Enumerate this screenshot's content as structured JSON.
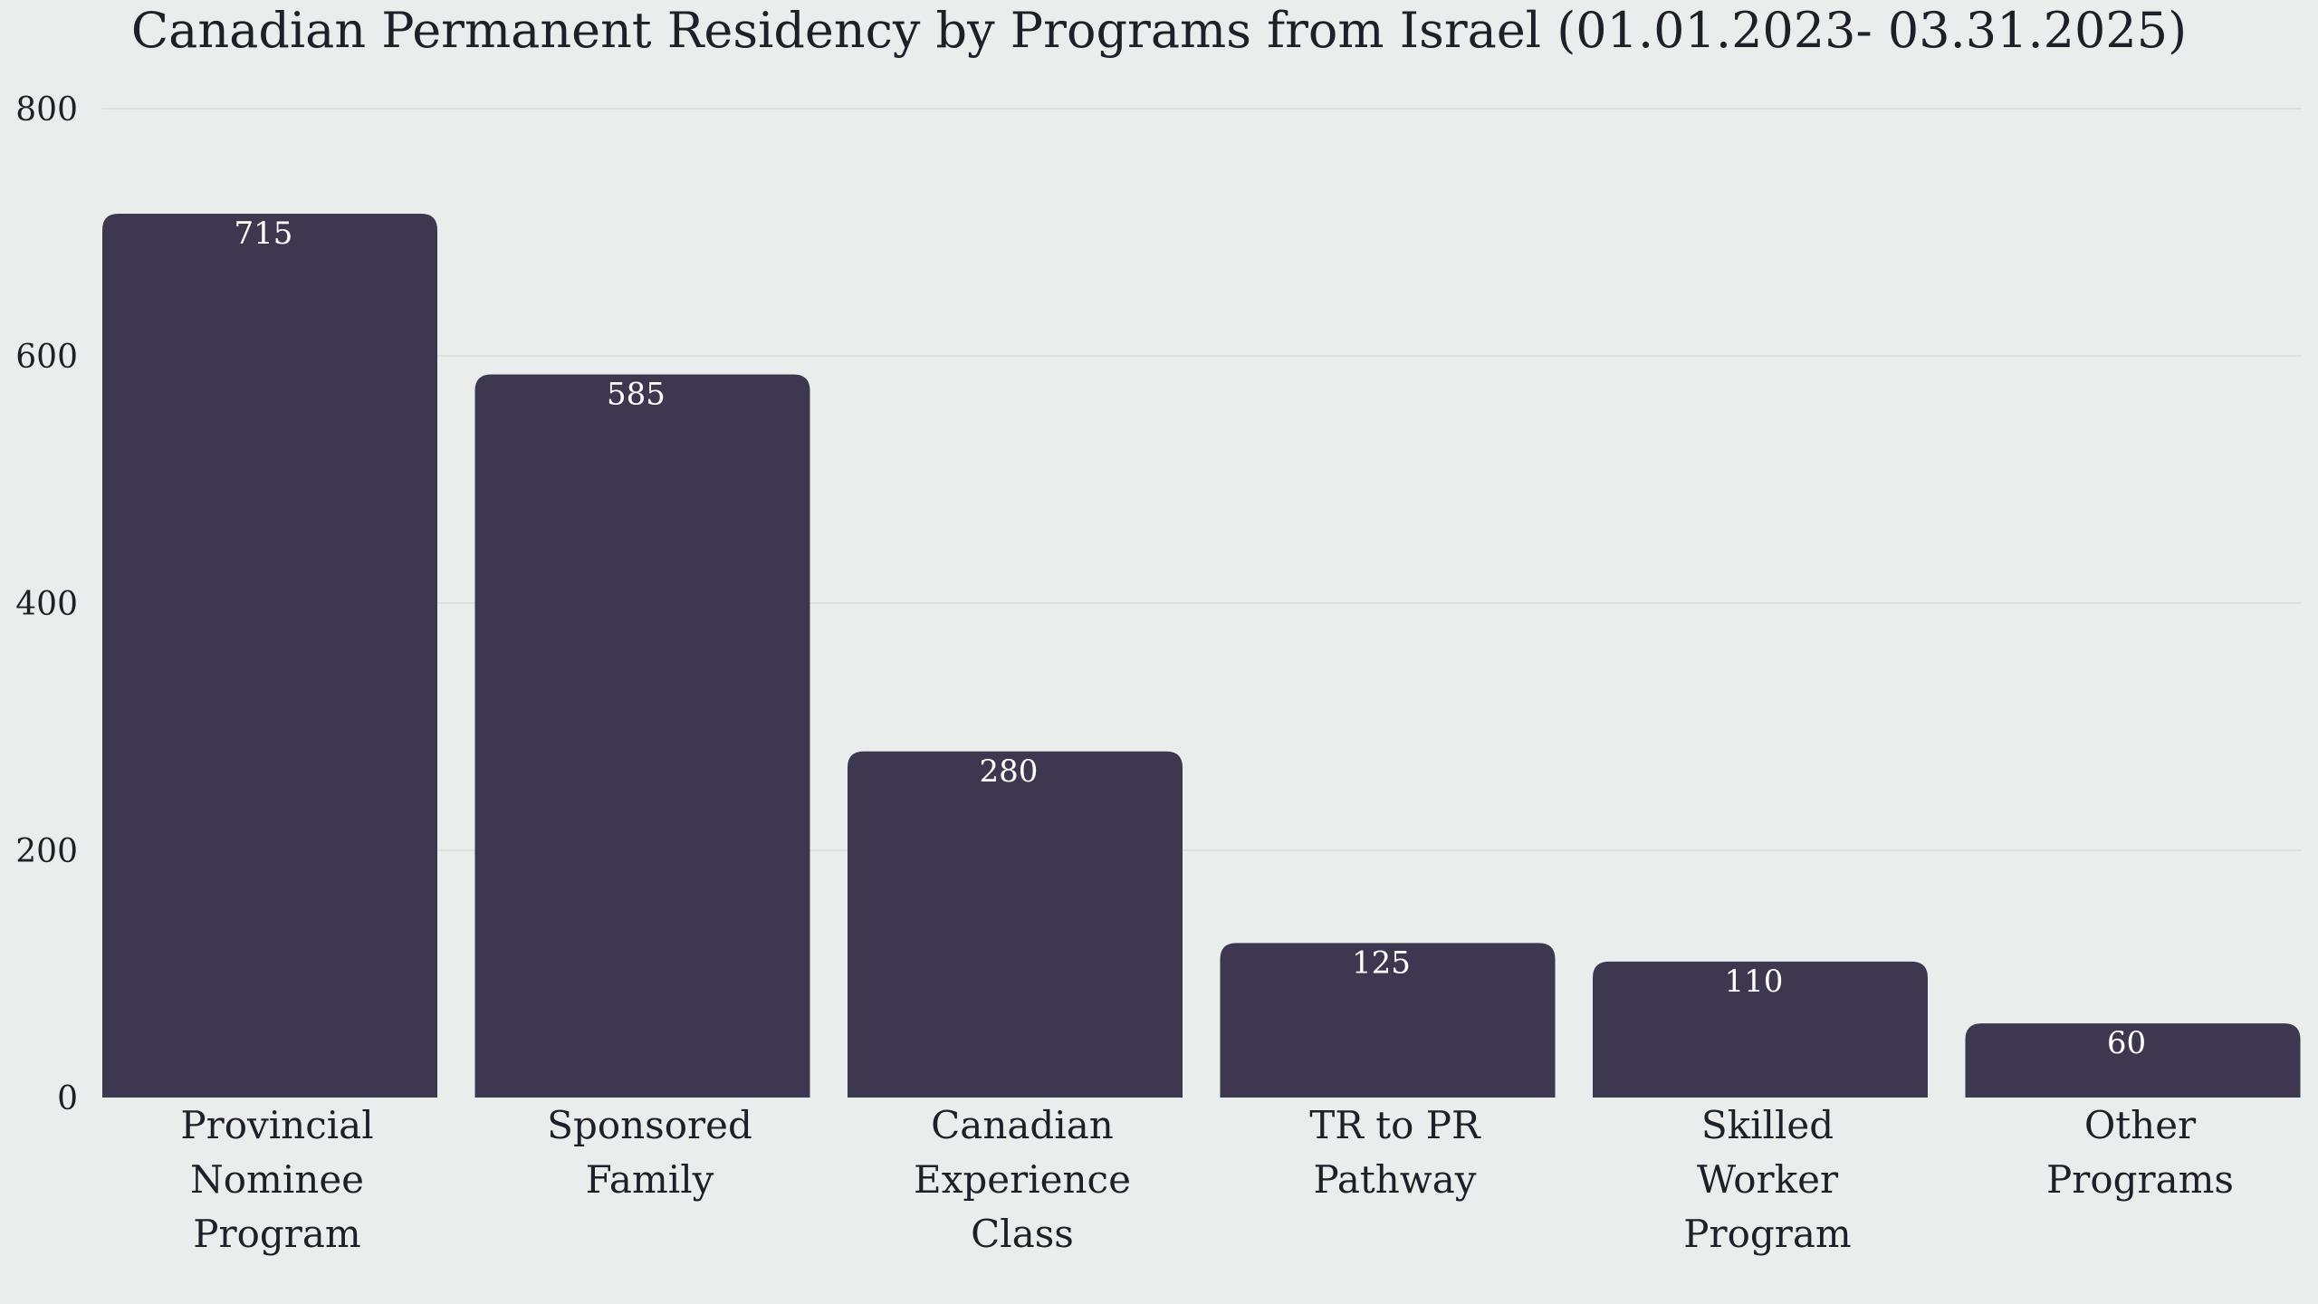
{
  "chart_data": {
    "type": "bar",
    "title": "Canadian Permanent Residency by Programs from Israel (01.01.2023- 03.31.2025)",
    "xlabel": "",
    "ylabel": "",
    "categories": [
      "Provincial Nominee Program",
      "Sponsored Family",
      "Canadian Experience Class",
      "TR to PR Pathway",
      "Skilled Worker Program",
      "Other Programs"
    ],
    "category_lines": [
      [
        "Provincial",
        "Nominee",
        "Program"
      ],
      [
        "Sponsored",
        "Family"
      ],
      [
        "Canadian",
        "Experience",
        "Class"
      ],
      [
        "TR to PR",
        "Pathway"
      ],
      [
        "Skilled",
        "Worker",
        "Program"
      ],
      [
        "Other",
        "Programs"
      ]
    ],
    "values": [
      715,
      585,
      280,
      125,
      110,
      60
    ],
    "ylim": [
      0,
      800
    ],
    "yticks": [
      0,
      200,
      400,
      600,
      800
    ],
    "grid": true,
    "bar_color": "#3d384f",
    "data_label_color": "#ffffff",
    "background": "#e9edeb"
  }
}
